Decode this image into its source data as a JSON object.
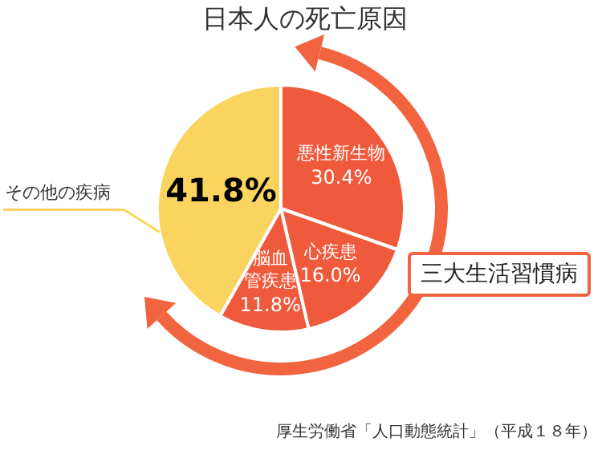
{
  "chart_data": {
    "type": "pie",
    "title": "日本人の死亡原因",
    "categories": [
      "悪性新生物",
      "心疾患",
      "脳血管疾患",
      "その他の疾病"
    ],
    "values": [
      30.4,
      16.0,
      11.8,
      41.8
    ],
    "colors": [
      "#f05a3c",
      "#f05a3c",
      "#f05a3c",
      "#fad45e"
    ],
    "value_labels": [
      "30.4%",
      "16.0%",
      "11.8%",
      "41.8%"
    ],
    "annotations": [
      "三大生活習慣病",
      "厚生労働省「人口動態統計」（平成１８年）"
    ],
    "legend": false
  }
}
